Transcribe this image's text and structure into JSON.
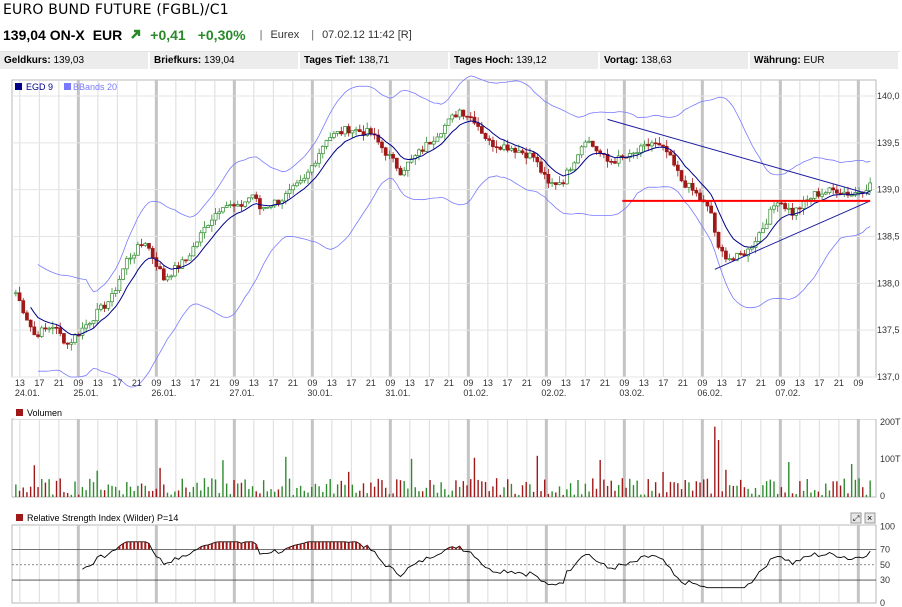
{
  "header": {
    "title": "EURO BUND FUTURE (FGBL)/C1",
    "price": "139,04 ON-X",
    "currency": "EUR",
    "change_abs": "+0,41",
    "change_pct": "+0,30%",
    "exchange": "Eurex",
    "timestamp": "07.02.12 11:42 [R]"
  },
  "quotes": [
    {
      "label": "Geldkurs:",
      "value": "139,03"
    },
    {
      "label": "Briefkurs:",
      "value": "139,04"
    },
    {
      "label": "Tages Tief:",
      "value": "138,71"
    },
    {
      "label": "Tages Hoch:",
      "value": "139,12"
    },
    {
      "label": "Vortag:",
      "value": "138,63"
    },
    {
      "label": "Währung:",
      "value": "EUR"
    }
  ],
  "colors": {
    "up": "#2e8b2e",
    "down": "#a01818",
    "ma": "#00008b",
    "bands": "#7a7aff",
    "trend": "#1a1aa0",
    "support": "#ff0000",
    "rsi_over": "#a01818"
  },
  "chart_data": [
    {
      "type": "candlestick",
      "title": "EURO BUND FUTURE (FGBL)/C1",
      "legend": [
        "EGD 9",
        "BBands 20"
      ],
      "ylim": [
        137.0,
        140.0
      ],
      "y_ticks": [
        "140,0",
        "139,5",
        "139,0",
        "138,5",
        "138,0",
        "137,5",
        "137,0"
      ],
      "hour_ticks": [
        "13",
        "17",
        "21",
        "09",
        "13",
        "17",
        "21",
        "09",
        "13",
        "17",
        "21",
        "09",
        "13",
        "17",
        "21",
        "09",
        "13",
        "17",
        "21",
        "09",
        "13",
        "17",
        "21",
        "09",
        "13",
        "17",
        "21",
        "09",
        "13",
        "17",
        "21",
        "09",
        "13",
        "17",
        "21",
        "09",
        "13",
        "17",
        "21",
        "09",
        "13",
        "17",
        "21",
        "09"
      ],
      "dates": [
        "24.01.",
        "25.01.",
        "26.01.",
        "27.01.",
        "30.01.",
        "31.01.",
        "01.02.",
        "02.02.",
        "03.02.",
        "06.02.",
        "07.02."
      ],
      "close_keyframes": [
        [
          0,
          137.9
        ],
        [
          5,
          137.45
        ],
        [
          10,
          137.55
        ],
        [
          14,
          137.35
        ],
        [
          20,
          137.6
        ],
        [
          26,
          137.85
        ],
        [
          30,
          138.25
        ],
        [
          35,
          138.45
        ],
        [
          40,
          138.05
        ],
        [
          46,
          138.25
        ],
        [
          52,
          138.65
        ],
        [
          56,
          138.85
        ],
        [
          60,
          138.8
        ],
        [
          64,
          138.95
        ],
        [
          66,
          138.8
        ],
        [
          72,
          138.9
        ],
        [
          78,
          139.1
        ],
        [
          84,
          139.55
        ],
        [
          90,
          139.65
        ],
        [
          96,
          139.6
        ],
        [
          100,
          139.4
        ],
        [
          104,
          139.2
        ],
        [
          108,
          139.35
        ],
        [
          114,
          139.6
        ],
        [
          120,
          139.85
        ],
        [
          124,
          139.75
        ],
        [
          128,
          139.5
        ],
        [
          134,
          139.45
        ],
        [
          140,
          139.35
        ],
        [
          144,
          139.05
        ],
        [
          148,
          139.1
        ],
        [
          154,
          139.55
        ],
        [
          160,
          139.3
        ],
        [
          166,
          139.35
        ],
        [
          172,
          139.5
        ],
        [
          176,
          139.4
        ],
        [
          180,
          139.1
        ],
        [
          184,
          138.95
        ],
        [
          188,
          138.75
        ],
        [
          190,
          138.35
        ],
        [
          194,
          138.25
        ],
        [
          198,
          138.35
        ],
        [
          202,
          138.6
        ],
        [
          206,
          138.9
        ],
        [
          210,
          138.75
        ],
        [
          216,
          138.95
        ],
        [
          222,
          139.0
        ],
        [
          226,
          138.95
        ],
        [
          231,
          139.05
        ]
      ],
      "support_level": 138.88,
      "trend_upper": [
        [
          139.75,
          138.95
        ]
      ],
      "trend_lower": [
        [
          138.15,
          138.88
        ]
      ],
      "bars": 232
    },
    {
      "type": "bar",
      "title": "Volumen",
      "y_ticks": [
        "200T",
        "100T",
        "0"
      ]
    },
    {
      "type": "line",
      "title": "Relative Strength Index (Wilder) P=14",
      "ylim": [
        0,
        100
      ],
      "y_ticks": [
        "100",
        "70",
        "50",
        "30",
        "0"
      ]
    }
  ]
}
